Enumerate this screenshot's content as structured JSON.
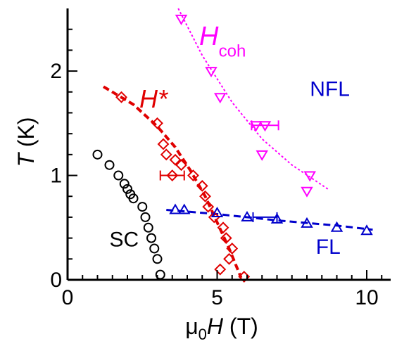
{
  "chart_data": {
    "type": "scatter",
    "xlabel": {
      "main": "μ",
      "sub": "0",
      "italic": "H",
      "unit": " (T)"
    },
    "ylabel": {
      "italic": "T",
      "unit": " (K)"
    },
    "xlim": [
      0,
      10.8
    ],
    "ylim": [
      0,
      2.6
    ],
    "xticks": [
      0,
      5,
      10
    ],
    "xtick_labels": [
      "0",
      "5",
      "10"
    ],
    "yticks": [
      0,
      1,
      2
    ],
    "ytick_labels": [
      "0",
      "1",
      "2"
    ],
    "grid": false,
    "series": [
      {
        "key": "sc",
        "color": "#000000",
        "marker": "circle",
        "points": [
          [
            1.0,
            1.2
          ],
          [
            1.4,
            1.1
          ],
          [
            1.7,
            1.0
          ],
          [
            1.9,
            0.92
          ],
          [
            2.0,
            0.87
          ],
          [
            2.1,
            0.82
          ],
          [
            2.2,
            0.78
          ],
          [
            2.5,
            0.7
          ],
          [
            2.6,
            0.6
          ],
          [
            2.7,
            0.5
          ],
          [
            2.8,
            0.4
          ],
          [
            2.9,
            0.3
          ],
          [
            3.0,
            0.2
          ],
          [
            3.1,
            0.05
          ]
        ]
      },
      {
        "key": "hstar",
        "color": "#e00000",
        "marker": "diamond",
        "points": [
          [
            1.8,
            1.75
          ],
          [
            3.0,
            1.5
          ],
          [
            3.2,
            1.3
          ],
          [
            3.3,
            1.2
          ],
          [
            3.6,
            1.15
          ],
          [
            3.8,
            1.1
          ],
          [
            3.5,
            1.0
          ],
          [
            4.2,
            1.0
          ],
          [
            4.5,
            0.9
          ],
          [
            4.6,
            0.8
          ],
          [
            4.7,
            0.7
          ],
          [
            4.9,
            0.6
          ],
          [
            5.2,
            0.5
          ],
          [
            5.3,
            0.4
          ],
          [
            5.5,
            0.3
          ],
          [
            5.4,
            0.2
          ],
          [
            5.1,
            0.1
          ],
          [
            5.9,
            0.03
          ]
        ],
        "errorbars": [
          {
            "x": 3.5,
            "y": 1.0,
            "xerr": 0.4
          }
        ],
        "fit": [
          [
            1.2,
            1.85
          ],
          [
            2.2,
            1.68
          ],
          [
            3.0,
            1.47
          ],
          [
            3.6,
            1.27
          ],
          [
            4.1,
            1.05
          ],
          [
            4.6,
            0.8
          ],
          [
            5.0,
            0.55
          ],
          [
            5.4,
            0.3
          ],
          [
            5.8,
            0.02
          ]
        ]
      },
      {
        "key": "hcoh",
        "color": "#ff00ff",
        "marker": "triangle-down",
        "points": [
          [
            3.8,
            2.5
          ],
          [
            4.8,
            2.0
          ],
          [
            5.1,
            1.75
          ],
          [
            6.3,
            1.48
          ],
          [
            6.6,
            1.48
          ],
          [
            6.5,
            1.2
          ],
          [
            8.1,
            1.0
          ],
          [
            8.0,
            0.85
          ]
        ],
        "errorbars": [
          {
            "x": 6.6,
            "y": 1.48,
            "xerr": 0.45
          }
        ],
        "fit": [
          [
            3.7,
            2.6
          ],
          [
            4.5,
            2.15
          ],
          [
            5.5,
            1.7
          ],
          [
            6.5,
            1.35
          ],
          [
            7.5,
            1.1
          ],
          [
            8.7,
            0.87
          ]
        ]
      },
      {
        "key": "fl",
        "color": "#0000cc",
        "marker": "triangle-up",
        "points": [
          [
            3.6,
            0.67
          ],
          [
            3.9,
            0.67
          ],
          [
            5.0,
            0.64
          ],
          [
            6.0,
            0.6
          ],
          [
            7.0,
            0.58
          ],
          [
            8.0,
            0.54
          ],
          [
            9.0,
            0.5
          ],
          [
            10.0,
            0.47
          ]
        ],
        "errorbars": [
          {
            "x": 6.6,
            "y": 0.6,
            "xerr": 0.4
          }
        ],
        "fit": [
          [
            3.3,
            0.67
          ],
          [
            5.0,
            0.63
          ],
          [
            7.0,
            0.57
          ],
          [
            9.0,
            0.52
          ],
          [
            10.2,
            0.48
          ]
        ]
      }
    ],
    "annotations": [
      {
        "key": "sc_label",
        "text": "SC",
        "color": "#000000",
        "x": 1.4,
        "y": 0.32,
        "size": 30,
        "italic": false
      },
      {
        "key": "fl_label",
        "text": "FL",
        "color": "#0000cc",
        "x": 8.3,
        "y": 0.25,
        "size": 30,
        "italic": false
      },
      {
        "key": "nfl_label",
        "text": "NFL",
        "color": "#0000cc",
        "x": 8.1,
        "y": 1.76,
        "size": 30,
        "italic": false
      },
      {
        "key": "hstar_label",
        "text": "H*",
        "color": "#e00000",
        "x": 2.4,
        "y": 1.65,
        "size": 36,
        "italic": true
      },
      {
        "key": "hcoh_label_main",
        "text": "H",
        "color": "#ff00ff",
        "x": 4.4,
        "y": 2.25,
        "size": 38,
        "italic": true
      },
      {
        "key": "hcoh_label_sub",
        "text": "coh",
        "color": "#ff00ff",
        "x": 5.05,
        "y": 2.14,
        "size": 24,
        "italic": false
      }
    ]
  }
}
